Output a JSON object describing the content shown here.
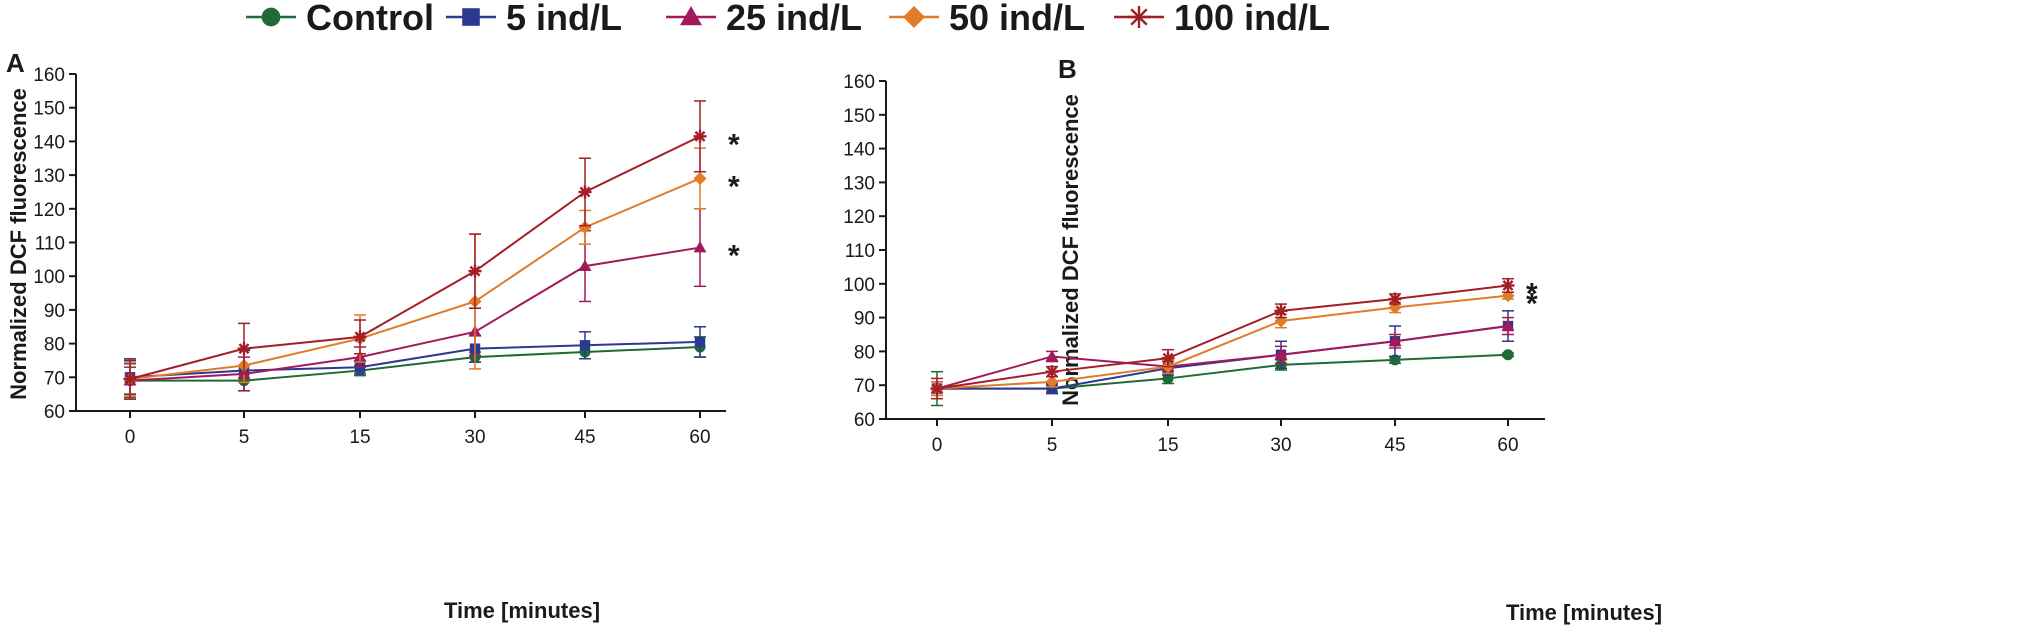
{
  "legend": [
    {
      "name": "Control",
      "color": "#1f6b35",
      "marker": "circle"
    },
    {
      "name": "5 ind/L",
      "color": "#2b3990",
      "marker": "square"
    },
    {
      "name": "25 ind/L",
      "color": "#a3195b",
      "marker": "triangle"
    },
    {
      "name": "50 ind/L",
      "color": "#e07b2a",
      "marker": "diamond"
    },
    {
      "name": "100 ind/L",
      "color": "#a31f25",
      "marker": "asterisk"
    }
  ],
  "chart_data": [
    {
      "panel": "A",
      "type": "line",
      "xlabel": "Time [minutes]",
      "ylabel": "Normalized DCF fluorescence",
      "categories": [
        "0",
        "5",
        "15",
        "30",
        "45",
        "60"
      ],
      "ylim": [
        60,
        160
      ],
      "yticks": [
        60,
        70,
        80,
        90,
        100,
        110,
        120,
        130,
        140,
        150,
        160
      ],
      "series": [
        {
          "name": "Control",
          "values": [
            69,
            69,
            72,
            76,
            77.5,
            79
          ],
          "errors": [
            5,
            3,
            1.5,
            1.5,
            2,
            3
          ]
        },
        {
          "name": "5 ind/L",
          "values": [
            70,
            72,
            73,
            78.5,
            79.5,
            80.5
          ],
          "errors": [
            5,
            6,
            2,
            4,
            4,
            4.5
          ]
        },
        {
          "name": "25 ind/L",
          "values": [
            69,
            71,
            76,
            83.5,
            103,
            108.5
          ],
          "errors": [
            4,
            5,
            3,
            7,
            10.5,
            11.5
          ]
        },
        {
          "name": "50 ind/L",
          "values": [
            69.5,
            73.5,
            81.5,
            92.5,
            114.5,
            129
          ],
          "errors": [
            5,
            5,
            7,
            20,
            5,
            9
          ]
        },
        {
          "name": "100 ind/L",
          "values": [
            69.5,
            78.5,
            82,
            101.5,
            125,
            141.5
          ],
          "errors": [
            6,
            7.5,
            5,
            11,
            10,
            10.5
          ]
        }
      ],
      "annotations": [
        {
          "label": "*",
          "x": "60",
          "y": 141.5
        },
        {
          "label": "*",
          "x": "60",
          "y": 129
        },
        {
          "label": "*",
          "x": "60",
          "y": 108.5
        }
      ]
    },
    {
      "panel": "B",
      "type": "line",
      "xlabel": "Time [minutes]",
      "ylabel": "Normalized DCF fluorescence",
      "categories": [
        "0",
        "5",
        "15",
        "30",
        "45",
        "60"
      ],
      "ylim": [
        60,
        160
      ],
      "yticks": [
        60,
        70,
        80,
        90,
        100,
        110,
        120,
        130,
        140,
        150,
        160
      ],
      "series": [
        {
          "name": "Control",
          "values": [
            69,
            69,
            72,
            76,
            77.5,
            79
          ],
          "errors": [
            5,
            1,
            1.5,
            1.5,
            1,
            0.5
          ]
        },
        {
          "name": "5 ind/L",
          "values": [
            69,
            69,
            75,
            79,
            83,
            87.5
          ],
          "errors": [
            2,
            1.5,
            2,
            4,
            4.5,
            4.5
          ]
        },
        {
          "name": "25 ind/L",
          "values": [
            69,
            78.5,
            75.5,
            79,
            83,
            87.5
          ],
          "errors": [
            2,
            1.5,
            2,
            2.5,
            2,
            2.5
          ]
        },
        {
          "name": "50 ind/L",
          "values": [
            69,
            71,
            75.5,
            89,
            93,
            96.5
          ],
          "errors": [
            2,
            1.5,
            2,
            2,
            1.5,
            1
          ]
        },
        {
          "name": "100 ind/L",
          "values": [
            69,
            74,
            78,
            92,
            95.5,
            99.5
          ],
          "errors": [
            3,
            1.5,
            2.5,
            2,
            1.5,
            2
          ]
        }
      ],
      "annotations": [
        {
          "label": "*",
          "x": "60",
          "y": 99.5
        },
        {
          "label": "*",
          "x": "60",
          "y": 96.5
        }
      ]
    }
  ]
}
